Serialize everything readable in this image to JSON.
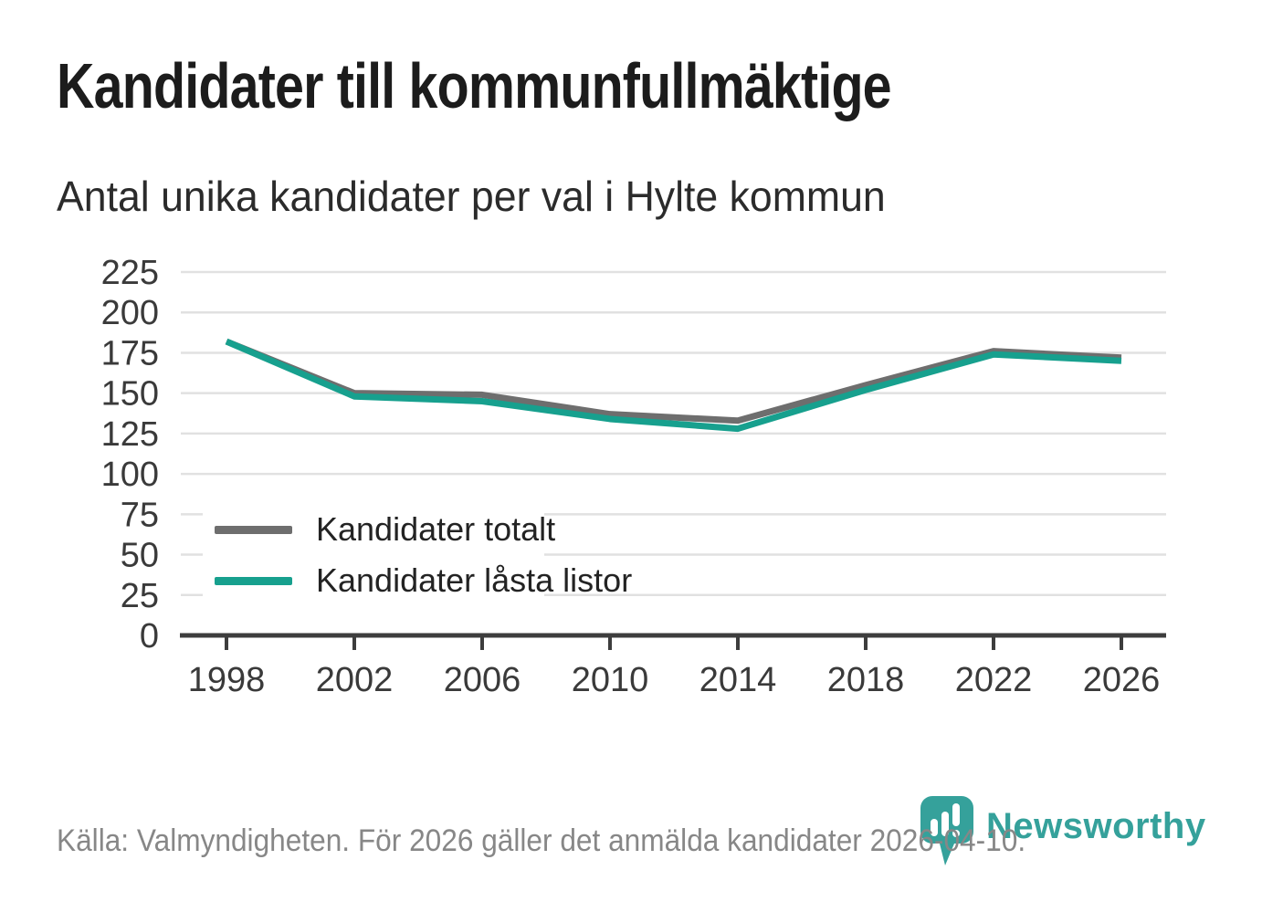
{
  "header": {
    "title": "Kandidater till kommunfullmäktige",
    "subtitle": "Antal unika kandidater per val i Hylte kommun"
  },
  "chart_data": {
    "type": "line",
    "title": "Kandidater till kommunfullmäktige",
    "subtitle": "Antal unika kandidater per val i Hylte kommun",
    "categories": [
      "1998",
      "2002",
      "2006",
      "2010",
      "2014",
      "2018",
      "2022",
      "2026"
    ],
    "series": [
      {
        "name": "Kandidater totalt",
        "color": "#6e6e6e",
        "values": [
          182,
          150,
          149,
          137,
          133,
          155,
          176,
          172
        ]
      },
      {
        "name": "Kandidater låsta listor",
        "color": "#17a08e",
        "values": [
          182,
          148,
          145,
          134,
          128,
          152,
          174,
          170
        ]
      }
    ],
    "xlabel": "",
    "ylabel": "",
    "ylim": [
      0,
      225
    ],
    "yticks": [
      0,
      25,
      50,
      75,
      100,
      125,
      150,
      175,
      200,
      225
    ],
    "grid": true,
    "legend_position": "inside-bottom-left"
  },
  "footer": {
    "source": "Källa: Valmyndigheten. För 2026 gäller det anmälda kandidater 2026-04-10.",
    "brand": "Newsworthy"
  },
  "colors": {
    "accent_teal": "#17a08e",
    "line_gray": "#6e6e6e",
    "grid": "#e1e1e1",
    "axis": "#3d3d3d",
    "title_text": "#1c1c1c",
    "muted_text": "#878787",
    "logo_teal": "#35a19b"
  }
}
